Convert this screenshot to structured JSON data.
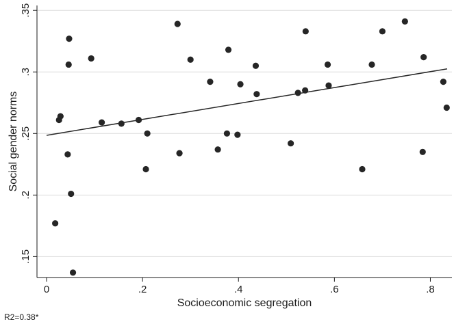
{
  "chart_data": {
    "type": "scatter",
    "xlabel": "Socioeconomic segregation",
    "ylabel": "Social gender norms",
    "xlim": [
      -0.02,
      0.845
    ],
    "ylim": [
      0.133,
      0.354
    ],
    "xticks": [
      0,
      0.2,
      0.4,
      0.6,
      0.8
    ],
    "xtick_labels": [
      "0",
      ".2",
      ".4",
      ".6",
      ".8"
    ],
    "yticks": [
      0.15,
      0.2,
      0.25,
      0.3,
      0.35
    ],
    "ytick_labels": [
      ".15",
      ".2",
      ".25",
      ".3",
      ".35"
    ],
    "grid": true,
    "legend": "none",
    "point_color": "#262626",
    "fit_line_color": "#262626",
    "grid_color": "#dcdcdc",
    "fit_line": {
      "x": [
        0.0,
        0.835
      ],
      "y": [
        0.2485,
        0.3025
      ]
    },
    "points": [
      {
        "x": 0.018,
        "y": 0.177
      },
      {
        "x": 0.026,
        "y": 0.261
      },
      {
        "x": 0.029,
        "y": 0.264
      },
      {
        "x": 0.044,
        "y": 0.233
      },
      {
        "x": 0.046,
        "y": 0.306
      },
      {
        "x": 0.047,
        "y": 0.327
      },
      {
        "x": 0.051,
        "y": 0.201
      },
      {
        "x": 0.055,
        "y": 0.137
      },
      {
        "x": 0.093,
        "y": 0.311
      },
      {
        "x": 0.115,
        "y": 0.259
      },
      {
        "x": 0.156,
        "y": 0.258
      },
      {
        "x": 0.192,
        "y": 0.261
      },
      {
        "x": 0.207,
        "y": 0.221
      },
      {
        "x": 0.21,
        "y": 0.25
      },
      {
        "x": 0.273,
        "y": 0.339
      },
      {
        "x": 0.277,
        "y": 0.234
      },
      {
        "x": 0.3,
        "y": 0.31
      },
      {
        "x": 0.341,
        "y": 0.292
      },
      {
        "x": 0.357,
        "y": 0.237
      },
      {
        "x": 0.376,
        "y": 0.25
      },
      {
        "x": 0.379,
        "y": 0.318
      },
      {
        "x": 0.398,
        "y": 0.249
      },
      {
        "x": 0.404,
        "y": 0.29
      },
      {
        "x": 0.436,
        "y": 0.305
      },
      {
        "x": 0.438,
        "y": 0.282
      },
      {
        "x": 0.509,
        "y": 0.242
      },
      {
        "x": 0.524,
        "y": 0.283
      },
      {
        "x": 0.539,
        "y": 0.285
      },
      {
        "x": 0.54,
        "y": 0.333
      },
      {
        "x": 0.586,
        "y": 0.306
      },
      {
        "x": 0.588,
        "y": 0.289
      },
      {
        "x": 0.658,
        "y": 0.221
      },
      {
        "x": 0.678,
        "y": 0.306
      },
      {
        "x": 0.7,
        "y": 0.333
      },
      {
        "x": 0.747,
        "y": 0.341
      },
      {
        "x": 0.784,
        "y": 0.235
      },
      {
        "x": 0.786,
        "y": 0.312
      },
      {
        "x": 0.827,
        "y": 0.292
      },
      {
        "x": 0.834,
        "y": 0.271
      }
    ]
  },
  "footnote": "R2=0.38*"
}
